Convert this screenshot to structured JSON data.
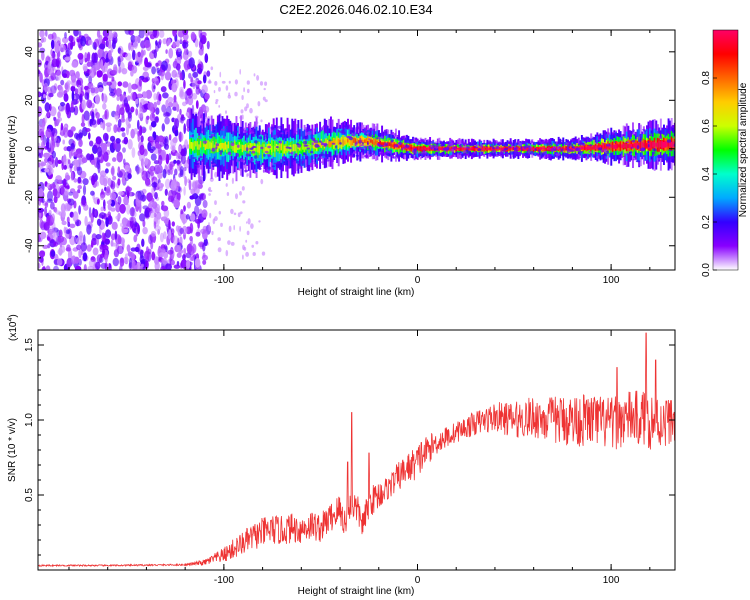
{
  "chart_data": [
    {
      "type": "heatmap",
      "title": "C2E2.2026.046.02.10.E34",
      "xlabel": "Height of straight line (km)",
      "ylabel": "Frequency (Hz)",
      "xlim": [
        -196,
        133
      ],
      "ylim": [
        -50,
        49
      ],
      "xticks": [
        -100,
        0,
        100
      ],
      "yticks": [
        40,
        20,
        0,
        -20,
        -40
      ],
      "noise_region_x": [
        -196,
        -108
      ],
      "band": [
        {
          "x": -118,
          "center": 1.5,
          "width": 9
        },
        {
          "x": -100,
          "center": 1.0,
          "width": 8
        },
        {
          "x": -80,
          "center": 0.0,
          "width": 8
        },
        {
          "x": -60,
          "center": 0.5,
          "width": 7
        },
        {
          "x": -40,
          "center": 3.0,
          "width": 6
        },
        {
          "x": -25,
          "center": 3.0,
          "width": 5
        },
        {
          "x": -10,
          "center": 1.0,
          "width": 4
        },
        {
          "x": 0,
          "center": 0.0,
          "width": 3
        },
        {
          "x": 20,
          "center": 0.0,
          "width": 2.5
        },
        {
          "x": 50,
          "center": 0.0,
          "width": 2.5
        },
        {
          "x": 80,
          "center": 0.0,
          "width": 3
        },
        {
          "x": 100,
          "center": 1.0,
          "width": 5
        },
        {
          "x": 133,
          "center": 2.0,
          "width": 7
        }
      ],
      "colorbar": {
        "label": "Normalized spectral amplitude",
        "range": [
          0,
          1
        ],
        "ticks": [
          "0.0",
          "0.2",
          "0.4",
          "0.6",
          "0.8"
        ],
        "tick_values": [
          0,
          0.2,
          0.4,
          0.6,
          0.8
        ],
        "colors": [
          "#ffffff",
          "#8800ff",
          "#3300ff",
          "#00aaff",
          "#00ffcc",
          "#00ff00",
          "#ccff00",
          "#ffcc00",
          "#ff6600",
          "#ff0000",
          "#ff0066"
        ]
      }
    },
    {
      "type": "line",
      "title": "",
      "xlabel": "Height of straight line (km)",
      "ylabel": "SNR (10 * v/v)",
      "scale_label": "(x10",
      "scale_exponent": "4",
      "scale_close": ")",
      "xlim": [
        -196,
        133
      ],
      "ylim": [
        0,
        1.6
      ],
      "xticks": [
        -100,
        0,
        100
      ],
      "yticks": [
        "0.5",
        "1.0",
        "1.5"
      ],
      "ytick_values": [
        0.5,
        1.0,
        1.5
      ],
      "color": "#ee3333",
      "series": [
        {
          "name": "SNR",
          "x": [
            -196,
            -160,
            -120,
            -110,
            -100,
            -95,
            -90,
            -85,
            -80,
            -75,
            -70,
            -65,
            -60,
            -55,
            -50,
            -45,
            -40,
            -37,
            -34,
            -31,
            -28,
            -25,
            -20,
            -15,
            -10,
            -5,
            0,
            5,
            10,
            20,
            30,
            40,
            50,
            60,
            70,
            80,
            90,
            100,
            110,
            120,
            125,
            130,
            133
          ],
          "y": [
            0.03,
            0.03,
            0.035,
            0.05,
            0.1,
            0.14,
            0.18,
            0.22,
            0.25,
            0.27,
            0.26,
            0.28,
            0.27,
            0.3,
            0.28,
            0.35,
            0.4,
            0.3,
            0.45,
            0.4,
            0.3,
            0.45,
            0.5,
            0.55,
            0.62,
            0.68,
            0.72,
            0.8,
            0.85,
            0.92,
            0.98,
            1.02,
            1.0,
            1.02,
            1.0,
            1.0,
            1.0,
            0.97,
            1.02,
            1.0,
            0.98,
            1.0,
            1.0
          ],
          "noise": [
            0.005,
            0.005,
            0.005,
            0.02,
            0.05,
            0.07,
            0.08,
            0.09,
            0.1,
            0.1,
            0.1,
            0.1,
            0.1,
            0.1,
            0.1,
            0.1,
            0.12,
            0.1,
            0.12,
            0.1,
            0.1,
            0.1,
            0.1,
            0.08,
            0.1,
            0.1,
            0.12,
            0.1,
            0.08,
            0.07,
            0.08,
            0.1,
            0.12,
            0.14,
            0.16,
            0.18,
            0.18,
            0.18,
            0.18,
            0.2,
            0.18,
            0.16,
            0.15
          ]
        }
      ],
      "spikes": [
        {
          "x": -34,
          "y": 1.05
        },
        {
          "x": -36,
          "y": 0.72
        },
        {
          "x": -25,
          "y": 0.78
        },
        {
          "x": 2,
          "y": 0.85
        },
        {
          "x": 118,
          "y": 1.58
        },
        {
          "x": 123,
          "y": 1.4
        },
        {
          "x": 103,
          "y": 1.35
        }
      ]
    }
  ]
}
